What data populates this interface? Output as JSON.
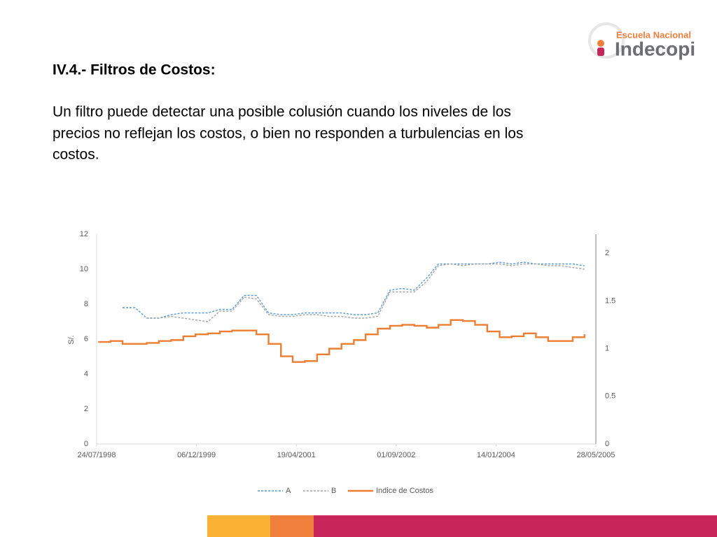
{
  "slide": {
    "logo": {
      "line1": "Escuela Nacional",
      "line2": "Indecopi"
    },
    "heading": "IV.4.- Filtros de Costos:",
    "paragraph": [
      "Un filtro puede detectar una posible colusión cuando los niveles de los",
      "precios no reflejan los costos, o bien no responden a turbulencias en los",
      "costos."
    ]
  },
  "chart_data": {
    "type": "line",
    "ylabel": "S/.",
    "x": [
      "01/08/1998",
      "01/10/1998",
      "01/12/1998",
      "01/02/1999",
      "01/04/1999",
      "01/06/1999",
      "01/08/1999",
      "01/10/1999",
      "01/12/1999",
      "01/02/2000",
      "01/04/2000",
      "01/06/2000",
      "01/08/2000",
      "01/10/2000",
      "01/12/2000",
      "01/02/2001",
      "01/04/2001",
      "01/06/2001",
      "01/08/2001",
      "01/10/2001",
      "01/12/2001",
      "01/02/2002",
      "01/04/2002",
      "01/06/2002",
      "01/08/2002",
      "01/10/2002",
      "01/12/2002",
      "01/02/2003",
      "01/04/2003",
      "01/06/2003",
      "01/08/2003",
      "01/10/2003",
      "01/12/2003",
      "01/02/2004",
      "01/04/2004",
      "01/06/2004",
      "01/08/2004",
      "01/10/2004",
      "01/12/2004",
      "01/02/2005",
      "01/04/2005"
    ],
    "xlim": [
      "24/07/1998",
      "28/05/2005"
    ],
    "xticks": [
      "24/07/1998",
      "06/12/1999",
      "19/04/2001",
      "01/09/2002",
      "14/01/2004",
      "28/05/2005"
    ],
    "ylim": [
      0,
      12
    ],
    "yticks": [
      0,
      2,
      4,
      6,
      8,
      10,
      12
    ],
    "y2lim": [
      0,
      2.2
    ],
    "y2ticks": [
      0,
      0.5,
      1,
      1.5,
      2
    ],
    "legend": "bottom",
    "series": [
      {
        "name": "A",
        "color": "#5b9bd5",
        "dashed": true,
        "values": [
          null,
          null,
          7.8,
          7.8,
          7.2,
          7.2,
          7.4,
          7.5,
          7.5,
          7.5,
          7.7,
          7.7,
          8.5,
          8.5,
          7.5,
          7.4,
          7.4,
          7.5,
          7.5,
          7.5,
          7.5,
          7.4,
          7.4,
          7.5,
          8.8,
          8.9,
          8.8,
          9.5,
          10.3,
          10.3,
          10.3,
          10.3,
          10.3,
          10.4,
          10.3,
          10.4,
          10.3,
          10.3,
          10.3,
          10.3,
          10.2
        ]
      },
      {
        "name": "B",
        "color": "#a5a5a5",
        "dashed": true,
        "values": [
          null,
          null,
          null,
          null,
          7.2,
          7.2,
          7.3,
          7.2,
          7.1,
          7.0,
          7.6,
          7.6,
          8.4,
          8.3,
          7.4,
          7.3,
          7.3,
          7.4,
          7.4,
          7.3,
          7.3,
          7.2,
          7.2,
          7.3,
          8.7,
          8.7,
          8.7,
          9.3,
          10.2,
          10.3,
          10.2,
          10.3,
          10.3,
          10.3,
          10.2,
          10.3,
          10.3,
          10.2,
          10.2,
          10.1,
          10.0
        ]
      },
      {
        "name": "Indice de Costos",
        "color": "#ed7d31",
        "dashed": false,
        "axis": "y2",
        "step": true,
        "values": [
          1.07,
          1.08,
          1.05,
          1.05,
          1.06,
          1.08,
          1.09,
          1.13,
          1.15,
          1.16,
          1.18,
          1.19,
          1.19,
          1.15,
          1.05,
          0.92,
          0.86,
          0.87,
          0.94,
          1.0,
          1.05,
          1.09,
          1.15,
          1.21,
          1.24,
          1.25,
          1.24,
          1.22,
          1.25,
          1.3,
          1.29,
          1.25,
          1.18,
          1.12,
          1.13,
          1.16,
          1.12,
          1.08,
          1.08,
          1.12,
          1.15
        ]
      }
    ]
  }
}
